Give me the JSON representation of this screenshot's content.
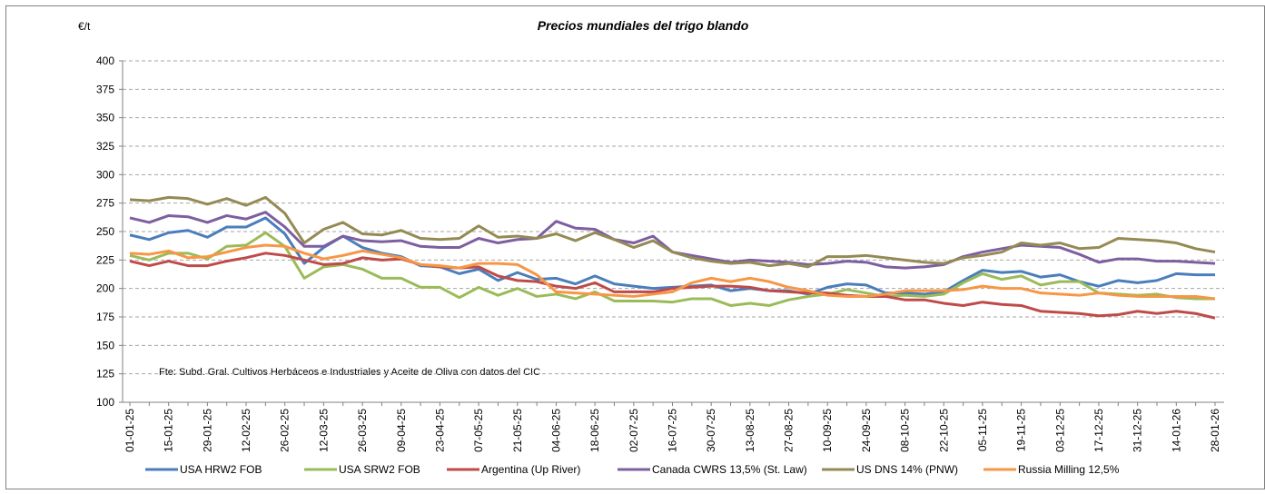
{
  "chart_data": {
    "type": "line",
    "title": "Precios mundiales del trigo blando",
    "y_label": "€/t",
    "annotation": "Fte: Subd. Gral. Cultivos Herbáceos e Industriales y Aceite de Oliva con datos del  CIC",
    "categories": [
      "01-01-25",
      null,
      "15-01-25",
      null,
      "29-01-25",
      null,
      "12-02-25",
      null,
      "26-02-25",
      null,
      "12-03-25",
      null,
      "26-03-25",
      null,
      "09-04-25",
      null,
      "23-04-25",
      null,
      "07-05-25",
      null,
      "21-05-25",
      null,
      "04-06-25",
      null,
      "18-06-25",
      null,
      "02-07-25",
      null,
      "16-07-25",
      null,
      "30-07-25",
      null,
      "13-08-25",
      null,
      "27-08-25",
      null,
      "10-09-25",
      null,
      "24-09-25",
      null,
      "08-10-25",
      null,
      "22-10-25",
      null,
      "05-11-25",
      null,
      "19-11-25",
      null,
      "03-12-25",
      null,
      "17-12-25",
      null,
      "31-12-25",
      null,
      "14-01-26",
      null,
      "28-01-26"
    ],
    "ylim": [
      100,
      400
    ],
    "yticks": [
      100,
      125,
      150,
      175,
      200,
      225,
      250,
      275,
      300,
      325,
      350,
      375,
      400
    ],
    "grid": true,
    "series": [
      {
        "name": "USA HRW2 FOB",
        "color": "#4a7ebb",
        "values": [
          247,
          243,
          249,
          251,
          245,
          254,
          254,
          262,
          248,
          222,
          236,
          246,
          236,
          231,
          228,
          220,
          219,
          213,
          217,
          207,
          214,
          208,
          209,
          204,
          211,
          204,
          202,
          200,
          201,
          202,
          203,
          198,
          200,
          198,
          198,
          195,
          201,
          204,
          203,
          196,
          196,
          195,
          197,
          207,
          216,
          214,
          215,
          210,
          212,
          206,
          202,
          207,
          205,
          207,
          213,
          212,
          212
        ]
      },
      {
        "name": "USA SRW2 FOB",
        "color": "#9bbb59",
        "values": [
          229,
          225,
          231,
          231,
          226,
          237,
          238,
          249,
          237,
          209,
          219,
          221,
          217,
          209,
          209,
          201,
          201,
          192,
          201,
          194,
          200,
          193,
          195,
          191,
          197,
          189,
          189,
          189,
          188,
          191,
          191,
          185,
          187,
          185,
          190,
          193,
          195,
          199,
          196,
          193,
          194,
          193,
          195,
          205,
          213,
          208,
          211,
          203,
          206,
          206,
          196,
          195,
          194,
          195,
          192,
          191,
          191
        ]
      },
      {
        "name": "Argentina (Up River)",
        "color": "#be4b48",
        "values": [
          224,
          220,
          224,
          220,
          220,
          224,
          227,
          231,
          229,
          225,
          221,
          222,
          227,
          225,
          226,
          221,
          219,
          218,
          219,
          211,
          207,
          206,
          202,
          200,
          205,
          197,
          197,
          197,
          200,
          201,
          202,
          202,
          201,
          198,
          197,
          196,
          196,
          194,
          193,
          193,
          190,
          190,
          187,
          185,
          188,
          186,
          185,
          180,
          179,
          178,
          176,
          177,
          180,
          178,
          180,
          178,
          174
        ]
      },
      {
        "name": "Canada CWRS 13,5% (St. Law)",
        "color": "#7d5fa0",
        "values": [
          262,
          258,
          264,
          263,
          258,
          264,
          261,
          267,
          254,
          237,
          237,
          246,
          242,
          241,
          242,
          237,
          236,
          236,
          244,
          240,
          243,
          244,
          259,
          253,
          252,
          243,
          240,
          246,
          232,
          229,
          226,
          223,
          225,
          224,
          223,
          221,
          222,
          224,
          223,
          219,
          218,
          219,
          221,
          228,
          232,
          235,
          238,
          237,
          236,
          230,
          223,
          226,
          226,
          224,
          224,
          223,
          222
        ]
      },
      {
        "name": "US DNS 14% (PNW)",
        "color": "#948a54",
        "values": [
          278,
          277,
          280,
          279,
          274,
          279,
          273,
          280,
          266,
          240,
          252,
          258,
          248,
          247,
          251,
          244,
          243,
          244,
          255,
          245,
          246,
          244,
          248,
          242,
          249,
          243,
          236,
          242,
          232,
          227,
          224,
          222,
          223,
          220,
          222,
          219,
          228,
          228,
          229,
          227,
          225,
          223,
          222,
          227,
          229,
          232,
          240,
          238,
          240,
          235,
          236,
          244,
          243,
          242,
          240,
          235,
          232
        ]
      },
      {
        "name": "Russia Milling 12,5%",
        "color": "#f79646",
        "values": [
          231,
          230,
          233,
          227,
          228,
          232,
          236,
          238,
          237,
          231,
          226,
          229,
          233,
          230,
          227,
          221,
          220,
          218,
          222,
          222,
          221,
          212,
          197,
          196,
          195,
          194,
          193,
          195,
          197,
          205,
          209,
          206,
          209,
          206,
          201,
          198,
          194,
          193,
          193,
          195,
          198,
          198,
          198,
          199,
          202,
          200,
          200,
          196,
          195,
          194,
          196,
          194,
          193,
          193,
          193,
          193,
          191
        ]
      }
    ]
  }
}
